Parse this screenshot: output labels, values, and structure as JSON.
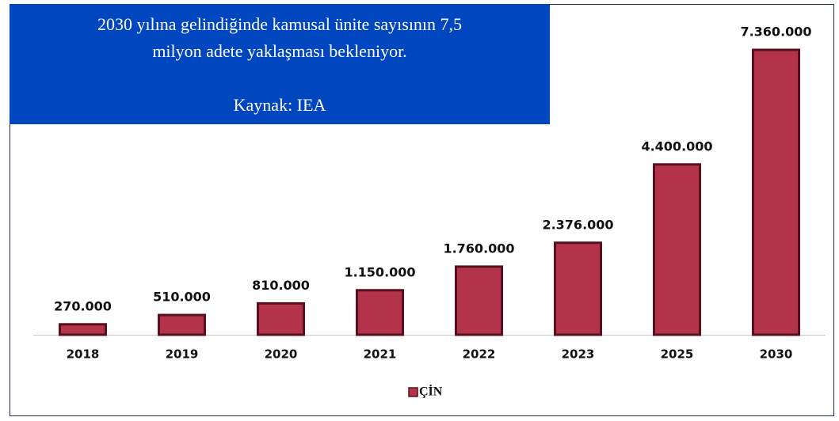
{
  "chart_data": {
    "type": "bar",
    "annotation": [
      "2030 yılına gelindiğinde kamusal ünite sayısının 7,5",
      "milyon adete yaklaşması bekleniyor.",
      "Kaynak: IEA"
    ],
    "categories": [
      "2018",
      "2019",
      "2020",
      "2021",
      "2022",
      "2023",
      "2025",
      "2030"
    ],
    "series": [
      {
        "name": "ÇİN",
        "color": "#b3334b",
        "values": [
          270000,
          510000,
          810000,
          1150000,
          1760000,
          2376000,
          4400000,
          7360000
        ],
        "value_labels": [
          "270.000",
          "510.000",
          "810.000",
          "1.150.000",
          "1.760.000",
          "2.376.000",
          "4.400.000",
          "7.360.000"
        ]
      }
    ],
    "legend": "bottom"
  }
}
